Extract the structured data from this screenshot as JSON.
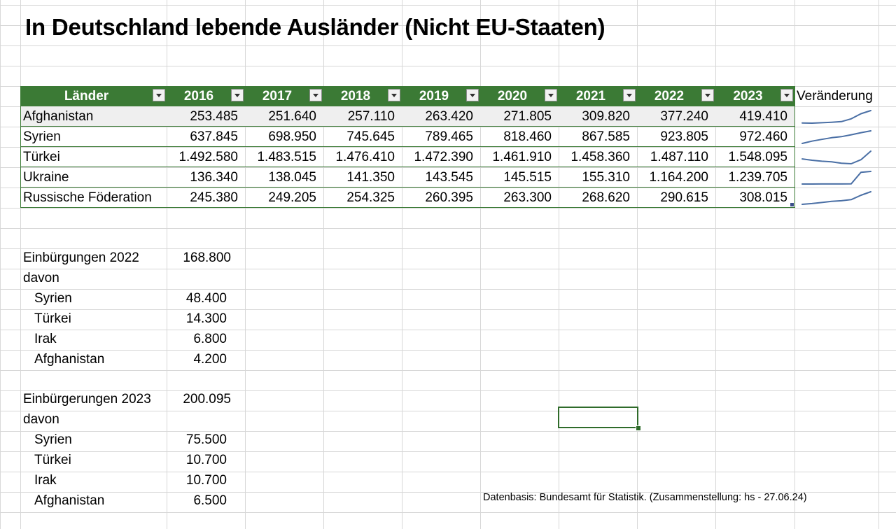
{
  "title": "In Deutschland lebende Ausländer (Nicht EU-Staaten)",
  "table": {
    "headers": [
      "Länder",
      "2016",
      "2017",
      "2018",
      "2019",
      "2020",
      "2021",
      "2022",
      "2023"
    ],
    "extra_header": "Veränderung",
    "rows": [
      {
        "country": "Afghanistan",
        "values": [
          "253.485",
          "251.640",
          "257.110",
          "263.420",
          "271.805",
          "309.820",
          "377.240",
          "419.410"
        ]
      },
      {
        "country": "Syrien",
        "values": [
          "637.845",
          "698.950",
          "745.645",
          "789.465",
          "818.460",
          "867.585",
          "923.805",
          "972.460"
        ]
      },
      {
        "country": "Türkei",
        "values": [
          "1.492.580",
          "1.483.515",
          "1.476.410",
          "1.472.390",
          "1.461.910",
          "1.458.360",
          "1.487.110",
          "1.548.095"
        ]
      },
      {
        "country": "Ukraine",
        "values": [
          "136.340",
          "138.045",
          "141.350",
          "143.545",
          "145.515",
          "155.310",
          "1.164.200",
          "1.239.705"
        ]
      },
      {
        "country": "Russische Föderation",
        "values": [
          "245.380",
          "249.205",
          "254.325",
          "260.395",
          "263.300",
          "268.620",
          "290.615",
          "308.015"
        ]
      }
    ]
  },
  "sparkline_data": [
    [
      253485,
      251640,
      257110,
      263420,
      271805,
      309820,
      377240,
      419410
    ],
    [
      637845,
      698950,
      745645,
      789465,
      818460,
      867585,
      923805,
      972460
    ],
    [
      1492580,
      1483515,
      1476410,
      1472390,
      1461910,
      1458360,
      1487110,
      1548095
    ],
    [
      136340,
      138045,
      141350,
      143545,
      145515,
      155310,
      1164200,
      1239705
    ],
    [
      245380,
      249205,
      254325,
      260395,
      263300,
      268620,
      290615,
      308015
    ]
  ],
  "naturalizations_2022": {
    "label": "Einbürgungen 2022",
    "total": "168.800",
    "davon": "davon",
    "items": [
      {
        "country": "Syrien",
        "value": "48.400"
      },
      {
        "country": "Türkei",
        "value": "14.300"
      },
      {
        "country": "Irak",
        "value": "6.800"
      },
      {
        "country": "Afghanistan",
        "value": "4.200"
      }
    ]
  },
  "naturalizations_2023": {
    "label": "Einbürgerungen 2023",
    "total": "200.095",
    "davon": "davon",
    "items": [
      {
        "country": "Syrien",
        "value": "75.500"
      },
      {
        "country": "Türkei",
        "value": "10.700"
      },
      {
        "country": "Irak",
        "value": "10.700"
      },
      {
        "country": "Afghanistan",
        "value": "6.500"
      }
    ]
  },
  "footer": "Datenbasis: Bundesamt für Statistik. (Zusammenstellung: hs - 27.06.24)",
  "colors": {
    "header_green": "#3b7a35",
    "first_row_fill": "#efefef",
    "sparkline": "#4a6fa5"
  }
}
